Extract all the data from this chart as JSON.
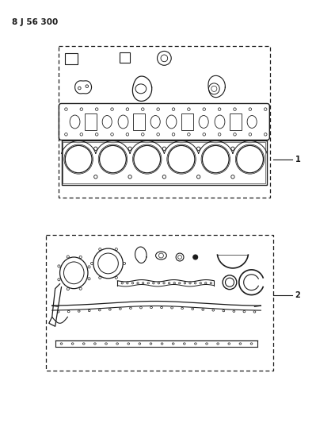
{
  "title": "8 J 56 300",
  "background_color": "#ffffff",
  "line_color": "#1a1a1a",
  "label1": "1",
  "label2": "2",
  "fig_width": 3.99,
  "fig_height": 5.33
}
